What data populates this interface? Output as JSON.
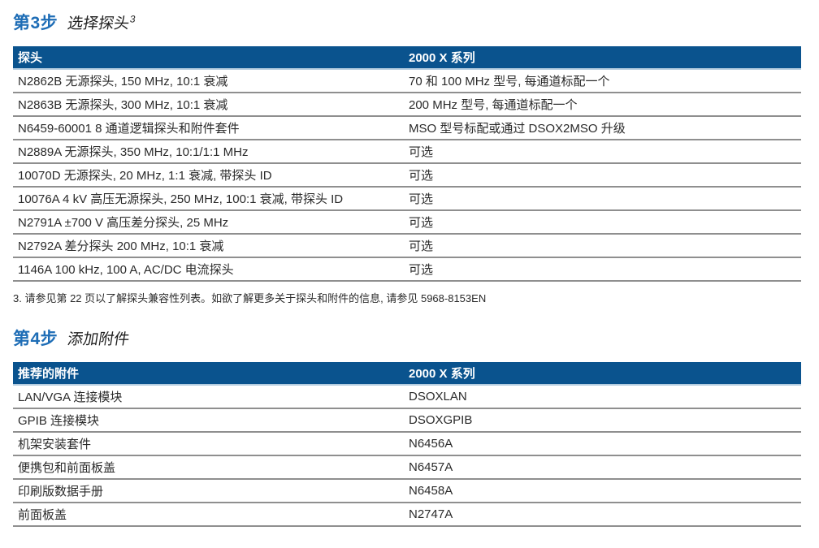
{
  "colors": {
    "header_bar_blue": "#0a538e",
    "step_label_blue": "#1e6db6",
    "header_underline_blue": "#b5cde0",
    "row_separator_gray": "#8f8f8f",
    "body_text": "#2a2a2a"
  },
  "step3": {
    "step_label": "第3步",
    "step_title": "选择探头",
    "step_title_superscript": "3",
    "table": {
      "col1_header": "探头",
      "col2_header": "2000 X 系列",
      "rows": [
        {
          "probe": "N2862B 无源探头, 150 MHz, 10:1 衰减",
          "series": "70 和 100 MHz 型号, 每通道标配一个"
        },
        {
          "probe": "N2863B 无源探头, 300 MHz, 10:1 衰减",
          "series": "200 MHz 型号, 每通道标配一个"
        },
        {
          "probe": "N6459-60001 8 通道逻辑探头和附件套件",
          "series": "MSO 型号标配或通过 DSOX2MSO 升级"
        },
        {
          "probe": "N2889A 无源探头, 350 MHz, 10:1/1:1 MHz",
          "series": "可选"
        },
        {
          "probe": "10070D 无源探头, 20 MHz, 1:1 衰减, 带探头 ID",
          "series": "可选"
        },
        {
          "probe": "10076A 4 kV 高压无源探头, 250 MHz, 100:1 衰减, 带探头 ID",
          "series": "可选"
        },
        {
          "probe": "N2791A ±700 V 高压差分探头, 25 MHz",
          "series": "可选"
        },
        {
          "probe": "N2792A 差分探头 200 MHz, 10:1 衰减",
          "series": "可选"
        },
        {
          "probe": "1146A 100 kHz, 100 A, AC/DC 电流探头",
          "series": "可选"
        }
      ]
    },
    "footnote": "3. 请参见第 22 页以了解探头兼容性列表。如欲了解更多关于探头和附件的信息, 请参见 5968-8153EN"
  },
  "step4": {
    "step_label": "第4步",
    "step_title": "添加附件",
    "table": {
      "col1_header": "推荐的附件",
      "col2_header": "2000 X 系列",
      "rows": [
        {
          "accessory": "LAN/VGA 连接模块",
          "model": "DSOXLAN"
        },
        {
          "accessory": "GPIB 连接模块",
          "model": "DSOXGPIB"
        },
        {
          "accessory": "机架安装套件",
          "model": "N6456A"
        },
        {
          "accessory": "便携包和前面板盖",
          "model": "N6457A"
        },
        {
          "accessory": "印刷版数据手册",
          "model": "N6458A"
        },
        {
          "accessory": "前面板盖",
          "model": "N2747A"
        }
      ]
    }
  }
}
